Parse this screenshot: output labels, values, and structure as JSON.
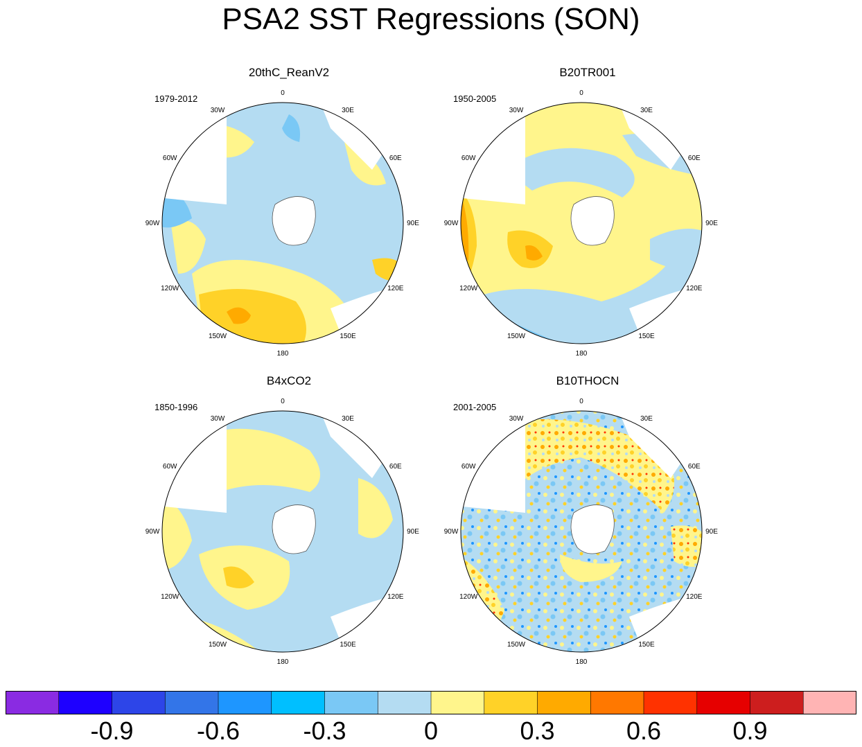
{
  "title": "PSA2 SST Regressions (SON)",
  "panels": [
    {
      "title": "20thC_ReanV2",
      "period": "1979-2012"
    },
    {
      "title": "B20TR001",
      "period": "1950-2005"
    },
    {
      "title": "B4xCO2",
      "period": "1850-1996"
    },
    {
      "title": "B10THOCN",
      "period": "2001-2005"
    }
  ],
  "longitude_labels": [
    "0",
    "30E",
    "60E",
    "90E",
    "120E",
    "150E",
    "180",
    "150W",
    "120W",
    "90W",
    "60W",
    "30W"
  ],
  "colorbar": {
    "colors": [
      "#8a2be2",
      "#1e00ff",
      "#2d45e8",
      "#3375e8",
      "#1e96ff",
      "#00bfff",
      "#7ac8f5",
      "#b4dcf2",
      "#fff58c",
      "#ffd228",
      "#ffaa00",
      "#ff7800",
      "#ff3200",
      "#e60000",
      "#cd1e1e",
      "#ffb4b4"
    ],
    "tick_labels": [
      "-0.9",
      "-0.6",
      "-0.3",
      "0",
      "0.3",
      "0.6",
      "0.9"
    ]
  }
}
